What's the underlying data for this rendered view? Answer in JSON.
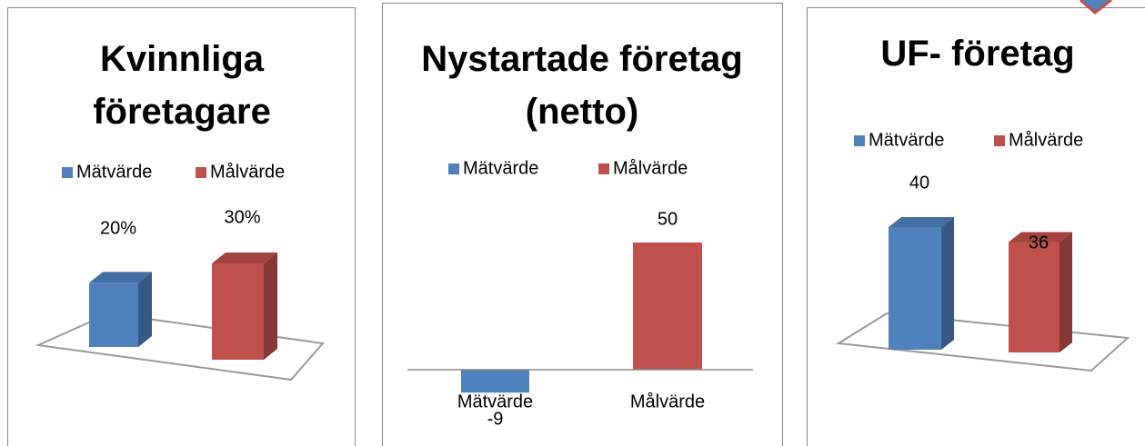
{
  "chart_data": [
    {
      "type": "bar",
      "title": "Kvinnliga företagare",
      "series": [
        {
          "name": "Mätvärde",
          "color": "#4f81bd",
          "values": [
            20
          ],
          "value_labels": [
            "20%"
          ]
        },
        {
          "name": "Målvärde",
          "color": "#c0504d",
          "values": [
            30
          ],
          "value_labels": [
            "30%"
          ]
        }
      ]
    },
    {
      "type": "bar",
      "title": "Nystartade företag (netto)",
      "categories": [
        "Mätvärde",
        "Målvärde"
      ],
      "series": [
        {
          "name": "Mätvärde",
          "color": "#4f81bd",
          "values": [
            -9,
            null
          ]
        },
        {
          "name": "Målvärde",
          "color": "#c0504d",
          "values": [
            null,
            50
          ]
        }
      ]
    },
    {
      "type": "bar",
      "title": "UF- företag",
      "series": [
        {
          "name": "Mätvärde",
          "color": "#4f81bd",
          "values": [
            40
          ]
        },
        {
          "name": "Målvärde",
          "color": "#c0504d",
          "values": [
            36
          ]
        }
      ]
    }
  ]
}
